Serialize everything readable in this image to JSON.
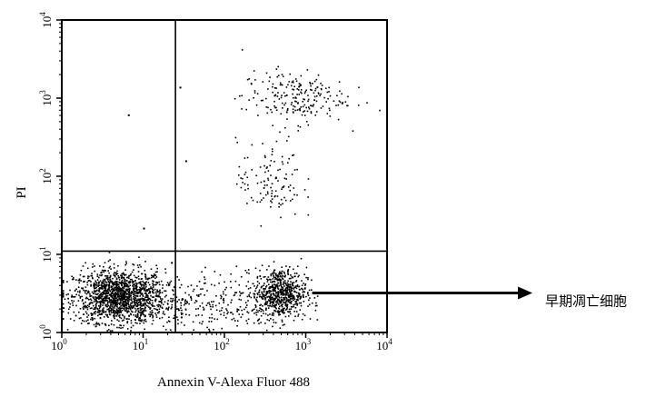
{
  "chart_data": {
    "type": "scatter",
    "xlabel": "Annexin V-Alexa Fluor 488",
    "ylabel": "PI",
    "x_scale": "log",
    "y_scale": "log",
    "xlim": [
      1,
      10000
    ],
    "ylim": [
      1,
      10000
    ],
    "x_ticks": [
      {
        "value": 1,
        "base": "10",
        "exp": "0"
      },
      {
        "value": 10,
        "base": "10",
        "exp": "1"
      },
      {
        "value": 100,
        "base": "10",
        "exp": "2"
      },
      {
        "value": 1000,
        "base": "10",
        "exp": "3"
      },
      {
        "value": 10000,
        "base": "10",
        "exp": "4"
      }
    ],
    "y_ticks": [
      {
        "value": 1,
        "base": "10",
        "exp": "0"
      },
      {
        "value": 10,
        "base": "10",
        "exp": "1"
      },
      {
        "value": 100,
        "base": "10",
        "exp": "2"
      },
      {
        "value": 1000,
        "base": "10",
        "exp": "3"
      },
      {
        "value": 10000,
        "base": "10",
        "exp": "4"
      }
    ],
    "quadrant_gates": {
      "x": 25,
      "y": 11
    },
    "grid": false,
    "legend": "none",
    "point_color": "#000000",
    "series": [
      {
        "cluster_points": [
          {
            "x": 5,
            "y": 3,
            "n": 1400
          },
          {
            "x": 480,
            "y": 3.3,
            "n": 650
          },
          {
            "x": 700,
            "y": 1050,
            "n": 220
          },
          {
            "x": 350,
            "y": 90,
            "n": 120
          },
          {
            "x": 90,
            "y": 2.5,
            "n": 260
          },
          {
            "x": 8,
            "y": 2,
            "n": 160
          }
        ],
        "scattered_points": [
          {
            "x": 6.5,
            "y": 620
          },
          {
            "x": 10,
            "y": 22
          },
          {
            "x": 28,
            "y": 1400
          },
          {
            "x": 22,
            "y": 8
          },
          {
            "x": 33,
            "y": 160
          },
          {
            "x": 29,
            "y": 1.6
          }
        ]
      }
    ],
    "annotation": {
      "text": "早期凋亡细胞",
      "arrow_from": {
        "x": 1200,
        "y": 3.2
      }
    }
  }
}
